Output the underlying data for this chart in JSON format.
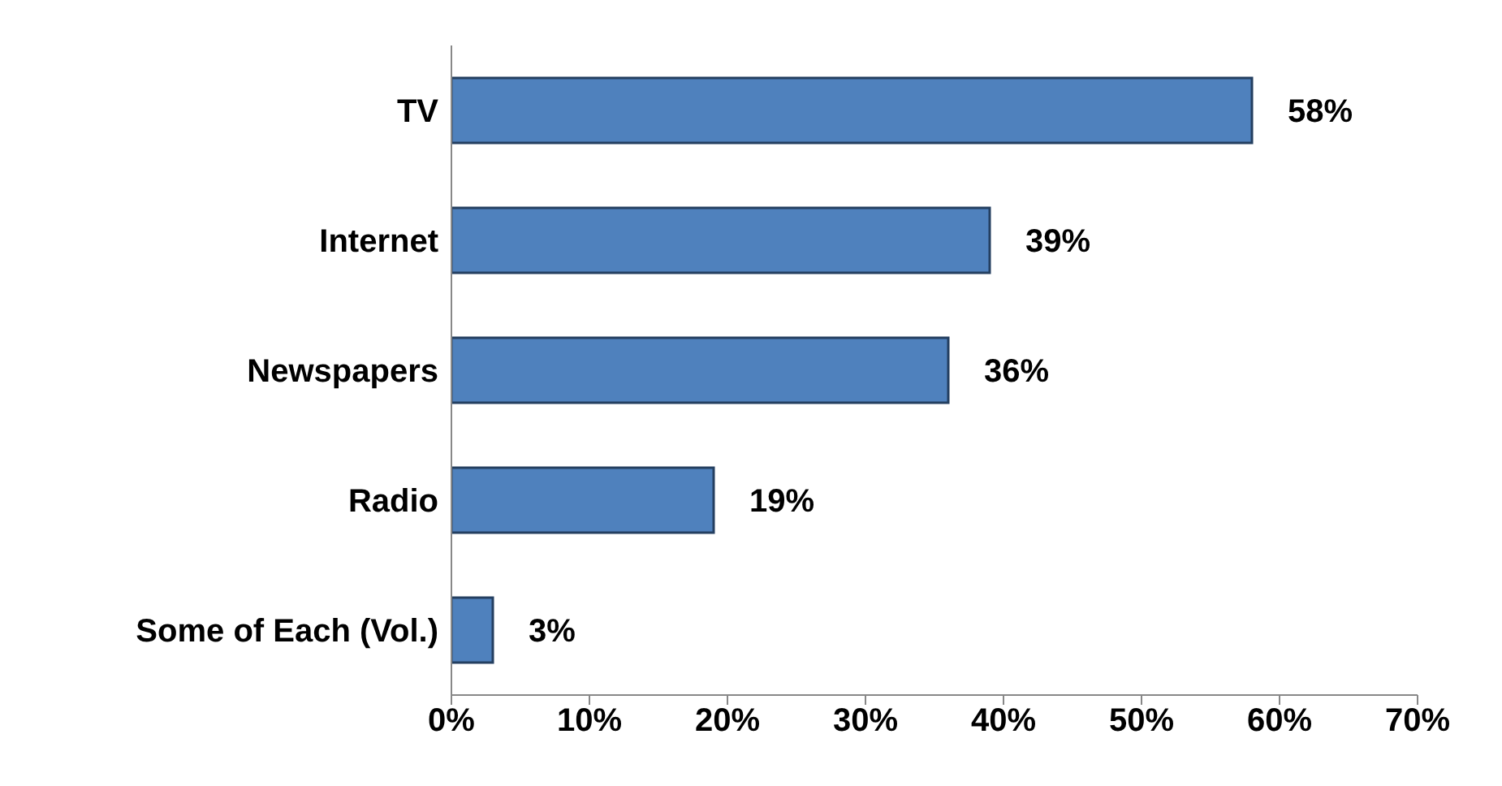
{
  "chart_data": {
    "type": "bar",
    "orientation": "horizontal",
    "categories": [
      "TV",
      "Internet",
      "Newspapers",
      "Radio",
      "Some of Each (Vol.)"
    ],
    "values": [
      58,
      39,
      36,
      19,
      3
    ],
    "value_labels": [
      "58%",
      "39%",
      "36%",
      "19%",
      "3%"
    ],
    "color": "#4f81bd",
    "xlim": [
      0,
      70
    ],
    "xticks": [
      {
        "value": 0,
        "label": "0%"
      },
      {
        "value": 10,
        "label": "10%"
      },
      {
        "value": 20,
        "label": "20%"
      },
      {
        "value": 30,
        "label": "30%"
      },
      {
        "value": 40,
        "label": "40%"
      },
      {
        "value": 50,
        "label": "50%"
      },
      {
        "value": 60,
        "label": "60%"
      },
      {
        "value": 70,
        "label": "70%"
      }
    ],
    "grid": false
  }
}
